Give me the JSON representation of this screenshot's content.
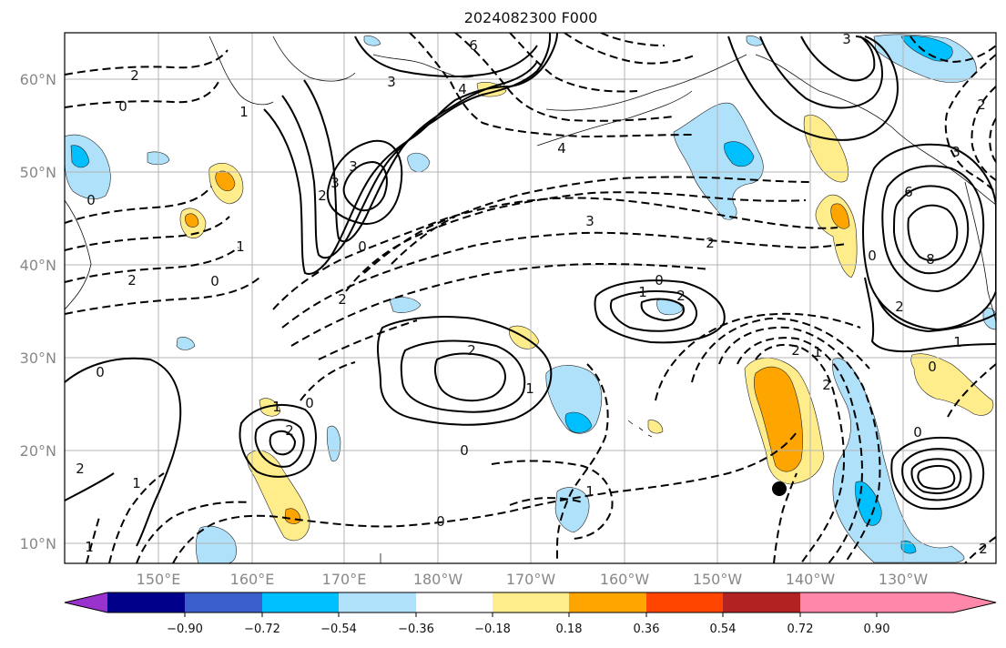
{
  "title": "2024082300 F000",
  "map": {
    "lat_labels": [
      "60°N",
      "50°N",
      "40°N",
      "30°N",
      "20°N",
      "10°N"
    ],
    "lon_labels": [
      "150°E",
      "160°E",
      "170°E",
      "180°W",
      "170°W",
      "160°W",
      "150°W",
      "140°W",
      "130°W"
    ],
    "storm_marker": {
      "lat": 16.1,
      "lon": -143.0
    }
  },
  "contour_labels": [
    "6",
    "4",
    "3",
    "3",
    "2",
    "0",
    "1",
    "2",
    "4",
    "3",
    "0",
    "1",
    "2",
    "0",
    "2",
    "3",
    "2",
    "1",
    "0",
    "2",
    "2",
    "1",
    "1",
    "2",
    "0",
    "0",
    "0",
    "1",
    "2",
    "0",
    "6",
    "8",
    "3",
    "1",
    "2",
    "0",
    "2",
    "3",
    "2",
    "2",
    "1",
    "0",
    "0",
    "1",
    "0",
    "1",
    "2"
  ],
  "colorbar": {
    "colors": [
      "#9a32cd",
      "#00008b",
      "#3a5fcd",
      "#00bfff",
      "#afe1fa",
      "#ffffff",
      "#ffec8b",
      "#ffa500",
      "#ff4500",
      "#b22222",
      "#ff88aa"
    ],
    "tick_labels": [
      "−0.90",
      "−0.72",
      "−0.54",
      "−0.36",
      "−0.18",
      "0.18",
      "0.36",
      "0.54",
      "0.72",
      "0.90"
    ]
  }
}
